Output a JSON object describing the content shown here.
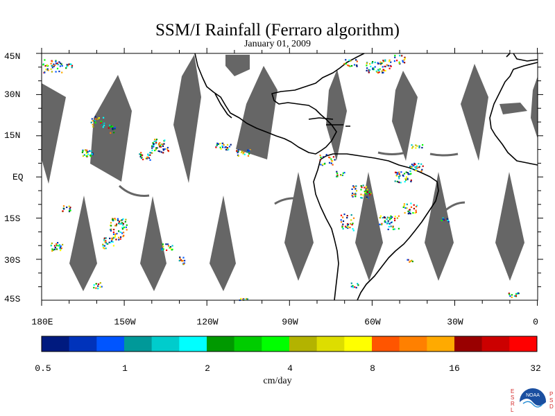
{
  "title": "SSM/I Rainfall (Ferraro algorithm)",
  "subtitle": "January 01, 2009",
  "lat_labels": [
    "45N",
    "30N",
    "15N",
    "EQ",
    "15S",
    "30S",
    "45S"
  ],
  "lon_labels": [
    "180E",
    "150W",
    "120W",
    "90W",
    "60W",
    "30W",
    "0"
  ],
  "colorbar": {
    "ticks": [
      "0.5",
      "1",
      "2",
      "4",
      "8",
      "16",
      "32"
    ],
    "units": "cm/day",
    "colors": [
      "#001a7f",
      "#0033bb",
      "#0055ff",
      "#009999",
      "#00cccc",
      "#00ffff",
      "#009900",
      "#00cc00",
      "#00ff00",
      "#b3b300",
      "#dddd00",
      "#ffff00",
      "#ff5500",
      "#ff8000",
      "#ffaa00",
      "#990000",
      "#cc0000",
      "#ff0000"
    ]
  },
  "colors": {
    "no_data": "#666666",
    "coast": "#000000"
  },
  "logo": {
    "left_letters": [
      "E",
      "S",
      "R",
      "L"
    ],
    "right_letters": [
      "P",
      "S",
      "D"
    ],
    "badge": "NOAA"
  }
}
